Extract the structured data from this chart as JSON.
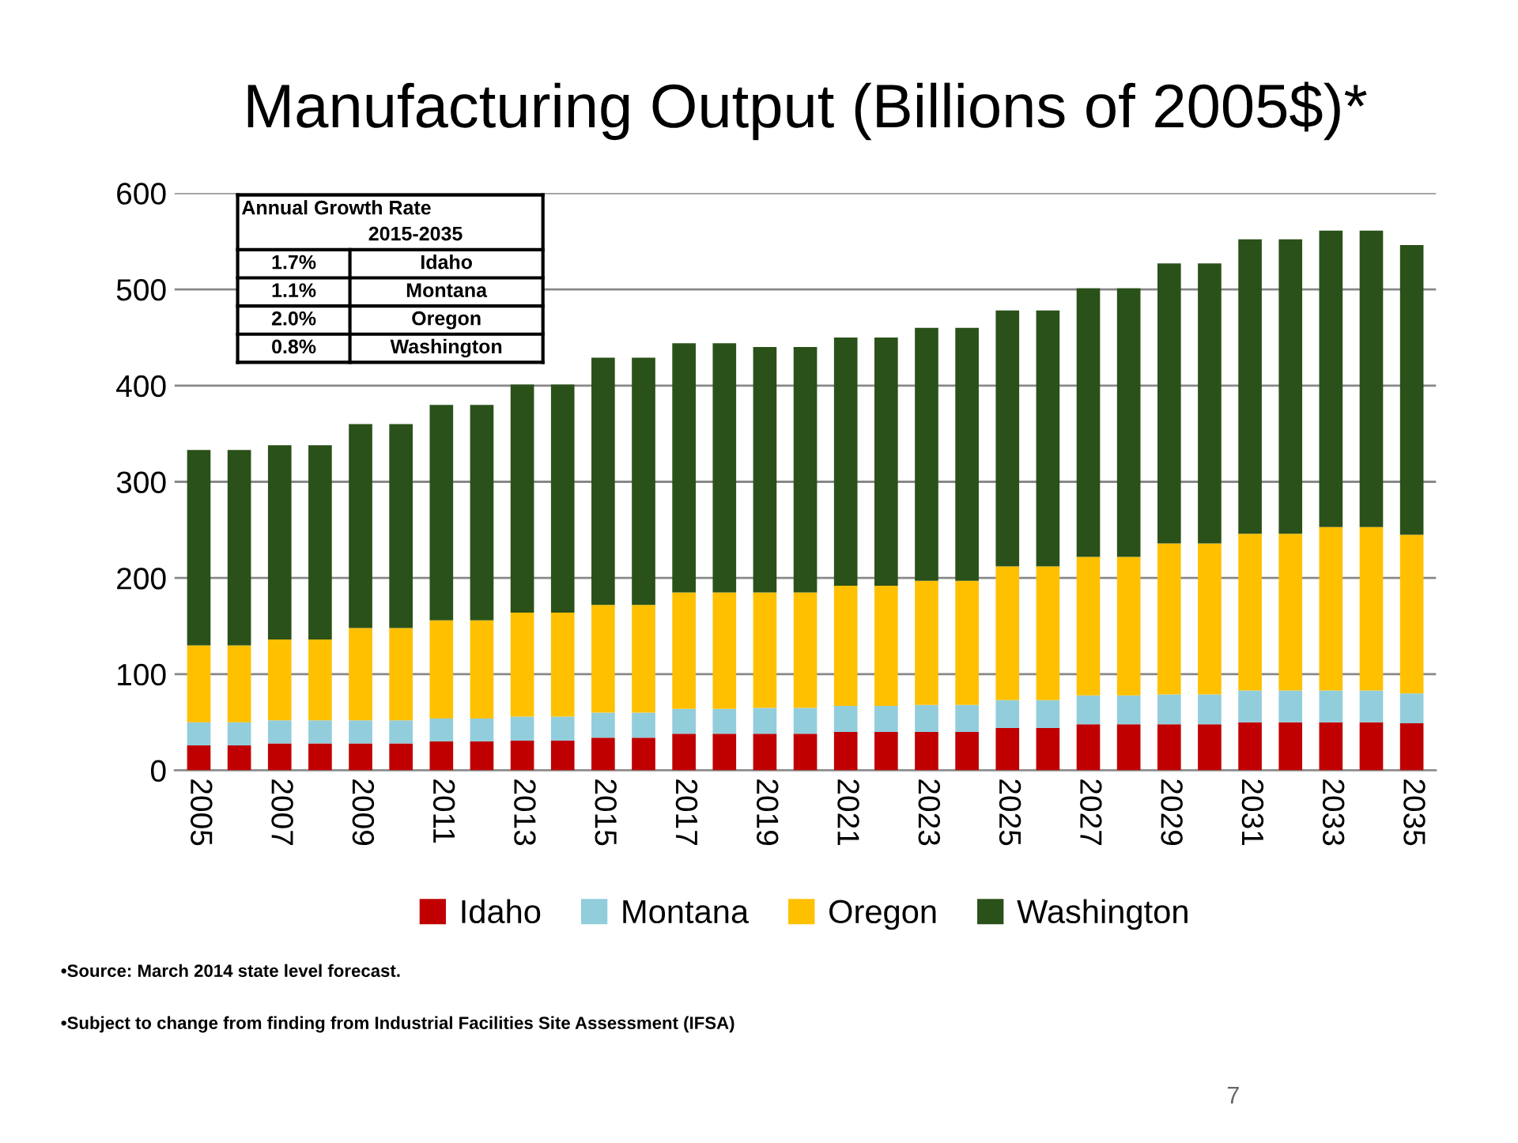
{
  "chart_data": {
    "type": "bar",
    "title": "Manufacturing Output (Billions of 2005$)*",
    "stacked": true,
    "categories": [
      "2005",
      null,
      "2007",
      null,
      "2009",
      null,
      "2011",
      null,
      "2013",
      null,
      "2015",
      null,
      "2017",
      null,
      "2019",
      null,
      "2021",
      null,
      "2023",
      null,
      "2025",
      null,
      "2027",
      null,
      "2029",
      null,
      "2031",
      null,
      "2033",
      null,
      "2035"
    ],
    "series": [
      {
        "name": "Idaho",
        "color": "#c00000",
        "values": [
          26,
          26,
          28,
          28,
          28,
          28,
          30,
          30,
          31,
          31,
          34,
          34,
          38,
          38,
          38,
          38,
          40,
          40,
          40,
          40,
          44,
          44,
          48,
          48,
          48,
          48,
          50,
          50,
          50,
          50,
          49
        ]
      },
      {
        "name": "Montana",
        "color": "#92cddc",
        "values": [
          24,
          24,
          24,
          24,
          24,
          24,
          24,
          24,
          25,
          25,
          26,
          26,
          26,
          26,
          27,
          27,
          27,
          27,
          28,
          28,
          29,
          29,
          30,
          30,
          31,
          31,
          33,
          33,
          33,
          33,
          31
        ]
      },
      {
        "name": "Oregon",
        "color": "#ffc000",
        "values": [
          80,
          80,
          84,
          84,
          96,
          96,
          102,
          102,
          108,
          108,
          112,
          112,
          121,
          121,
          120,
          120,
          125,
          125,
          129,
          129,
          139,
          139,
          144,
          144,
          157,
          157,
          163,
          163,
          170,
          170,
          165
        ]
      },
      {
        "name": "Washington",
        "color": "#2a5119",
        "values": [
          203,
          203,
          202,
          202,
          212,
          212,
          224,
          224,
          237,
          237,
          257,
          257,
          259,
          259,
          255,
          255,
          258,
          258,
          263,
          263,
          266,
          266,
          279,
          279,
          291,
          291,
          306,
          306,
          308,
          308,
          301
        ]
      }
    ],
    "ylim": [
      0,
      600
    ],
    "yticks": [
      0,
      100,
      200,
      300,
      400,
      500,
      600
    ],
    "grid": "y",
    "legend": "bottom",
    "annotations": [
      "Annual Growth Rate",
      "2015-2035",
      "1.7%",
      "Idaho",
      "1.1%",
      "Montana",
      "2.0%",
      "Oregon",
      "0.8%",
      "Washington",
      "•Source: March 2014 state level forecast.",
      "•Subject to change from finding from Industrial Facilities Site Assessment (IFSA)",
      "7"
    ]
  }
}
